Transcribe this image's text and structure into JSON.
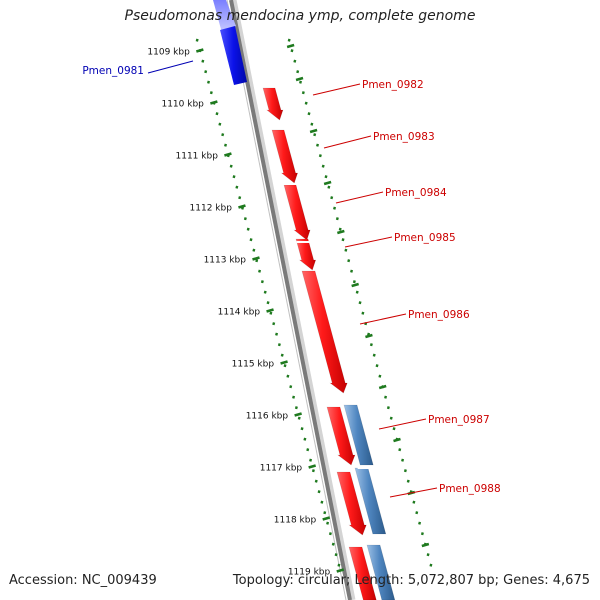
{
  "title": "Pseudomonas mendocina ymp, complete genome",
  "footer": {
    "accession": "Accession: NC_009439",
    "summary": "Topology: circular; Length: 5,072,807 bp; Genes: 4,675"
  },
  "colors": {
    "forward_gene": "#ff1a1a",
    "reverse_gene": "#0b12e8",
    "forward_feature": "#4f86c0",
    "backbone": "#7a7a7a",
    "ticks": "#1f7a1f",
    "forward_label": "#cc0000",
    "reverse_label": "#0000b3"
  },
  "ruler": {
    "unit": "kbp",
    "ticks": [
      "1109 kbp",
      "1110 kbp",
      "1111 kbp",
      "1112 kbp",
      "1113 kbp",
      "1114 kbp",
      "1115 kbp",
      "1116 kbp",
      "1117 kbp",
      "1118 kbp",
      "1119 kbp"
    ]
  },
  "genes": [
    {
      "name": "Pmen_0981",
      "strand": "reverse"
    },
    {
      "name": "Pmen_0982",
      "strand": "forward"
    },
    {
      "name": "Pmen_0983",
      "strand": "forward"
    },
    {
      "name": "Pmen_0984",
      "strand": "forward"
    },
    {
      "name": "Pmen_0985",
      "strand": "forward"
    },
    {
      "name": "Pmen_0986",
      "strand": "forward"
    },
    {
      "name": "Pmen_0987",
      "strand": "forward"
    },
    {
      "name": "Pmen_0988",
      "strand": "forward"
    }
  ]
}
